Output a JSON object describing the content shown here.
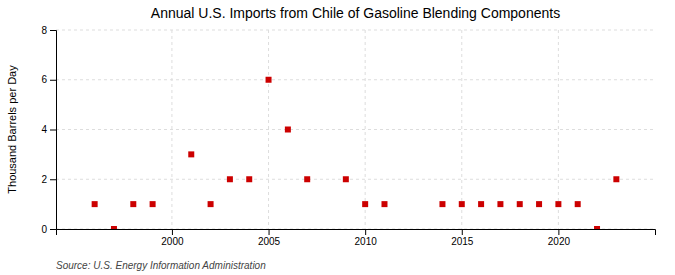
{
  "chart_data": {
    "type": "scatter",
    "title": "Annual U.S. Imports from Chile of Gasoline Blending Components",
    "ylabel": "Thousand Barrels per Day",
    "source": "Source: U.S. Energy Information Administration",
    "x": [
      1996,
      1997,
      1998,
      1999,
      2001,
      2002,
      2003,
      2004,
      2005,
      2006,
      2007,
      2009,
      2010,
      2011,
      2014,
      2015,
      2016,
      2017,
      2018,
      2019,
      2020,
      2021,
      2022,
      2023
    ],
    "values": [
      1,
      0,
      1,
      1,
      3,
      1,
      2,
      2,
      6,
      4,
      2,
      2,
      1,
      1,
      1,
      1,
      1,
      1,
      1,
      1,
      1,
      1,
      0,
      2
    ],
    "color": "#cc0000",
    "marker": "square",
    "xlim": [
      1994.0,
      2025.0
    ],
    "ylim": [
      0,
      8
    ],
    "xticks": [
      2000,
      2005,
      2010,
      2015,
      2020
    ],
    "yticks": [
      0,
      2,
      4,
      6,
      8
    ],
    "grid": true
  }
}
